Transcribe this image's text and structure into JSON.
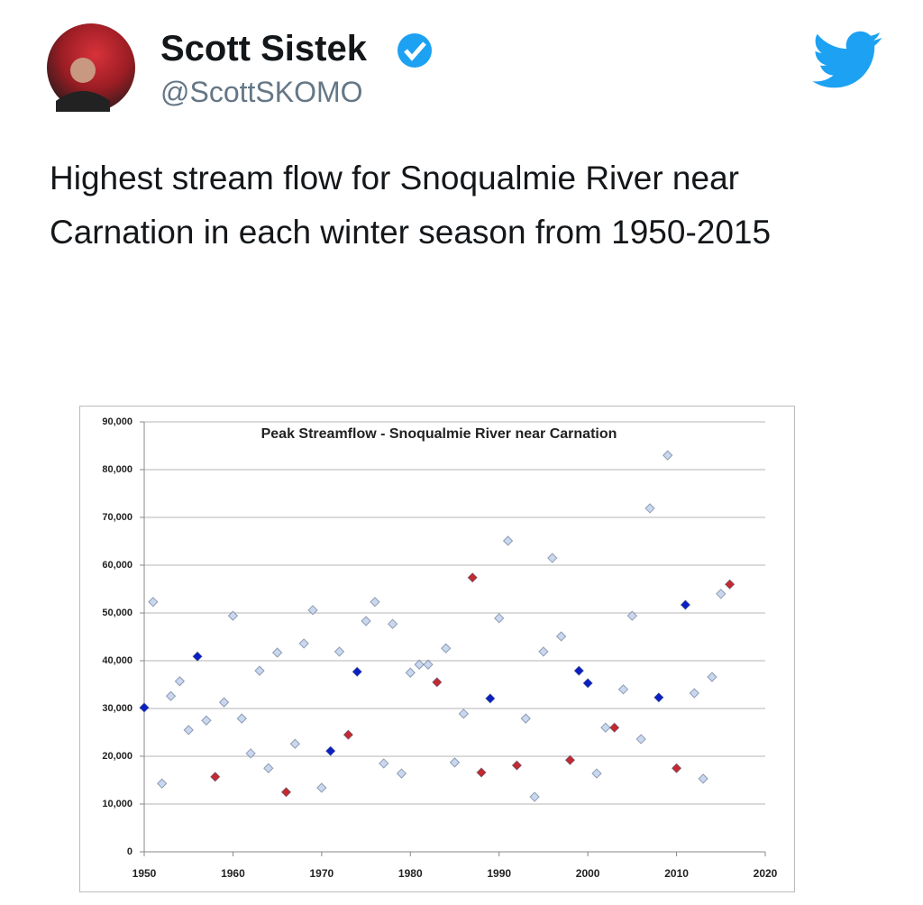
{
  "tweet": {
    "author": {
      "name": "Scott Sistek",
      "handle": "@ScottSKOMO"
    },
    "text": "Highest stream flow for Snoqualmie River near Carnation in each winter season from 1950-2015"
  },
  "chart_data": {
    "type": "scatter",
    "title": "Peak Streamflow - Snoqualmie River near Carnation",
    "xlim": [
      1950,
      2020
    ],
    "xticks": [
      1950,
      1960,
      1970,
      1980,
      1990,
      2000,
      2010,
      2020
    ],
    "ylim": [
      0,
      90000
    ],
    "yticks": [
      0,
      {
        "value": 10000,
        "label": "10,000"
      },
      {
        "value": 20000,
        "label": "20,000"
      },
      {
        "value": 30000,
        "label": "30,000"
      },
      {
        "value": 40000,
        "label": "40,000"
      },
      {
        "value": 50000,
        "label": "50,000"
      },
      {
        "value": 60000,
        "label": "60,000"
      },
      {
        "value": 70000,
        "label": "70,000"
      },
      {
        "value": 80000,
        "label": "80,000"
      },
      {
        "value": 90000,
        "label": "90,000"
      }
    ],
    "grid": true,
    "series": [
      {
        "color": "#c9d8ee",
        "x": [
          1951,
          1952,
          1953,
          1954,
          1955,
          1957,
          1959,
          1960,
          1961,
          1962,
          1963,
          1964,
          1965,
          1967,
          1968,
          1969,
          1970,
          1972,
          1975,
          1976,
          1977,
          1978,
          1979,
          1980,
          1981,
          1982,
          1984,
          1985,
          1986,
          1990,
          1991,
          1993,
          1994,
          1995,
          1996,
          1997,
          2001,
          2002,
          2004,
          2005,
          2006,
          2007,
          2009,
          2012,
          2013,
          2014,
          2015
        ],
        "values": [
          52300,
          14300,
          32600,
          35700,
          25500,
          27500,
          31300,
          49400,
          27900,
          20600,
          37900,
          17500,
          41700,
          22600,
          43600,
          50600,
          13400,
          41900,
          48300,
          52300,
          18500,
          47700,
          16400,
          37500,
          39200,
          39200,
          42600,
          18700,
          28900,
          48900,
          65100,
          27900,
          11500,
          41900,
          61500,
          45100,
          16400,
          26000,
          34000,
          49400,
          23600,
          71900,
          83000,
          33200,
          15300,
          36600,
          54000
        ]
      },
      {
        "color": "#0a1fc4",
        "x": [
          1950,
          1956,
          1971,
          1974,
          1989,
          1999,
          2000,
          2008,
          2011
        ],
        "values": [
          30200,
          40900,
          21100,
          37700,
          32100,
          37900,
          35300,
          32300,
          51700
        ]
      },
      {
        "color": "#c42a2f",
        "x": [
          1958,
          1966,
          1973,
          1983,
          1987,
          1988,
          1992,
          1998,
          2003,
          2010,
          2016
        ],
        "values": [
          15700,
          12500,
          24500,
          35500,
          57400,
          16600,
          18100,
          19200,
          26000,
          17500,
          56000
        ]
      }
    ]
  }
}
